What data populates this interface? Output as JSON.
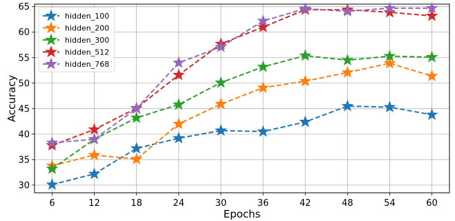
{
  "chart_data": {
    "type": "line",
    "title": "",
    "xlabel": "Epochs",
    "ylabel": "Accuracy",
    "x": [
      6,
      12,
      18,
      24,
      30,
      36,
      42,
      48,
      54,
      60
    ],
    "xlim": [
      3.5,
      62.5
    ],
    "ylim": [
      28.5,
      65.5
    ],
    "yticks": [
      30,
      35,
      40,
      45,
      50,
      55,
      60,
      65
    ],
    "grid": true,
    "legend_position": "top-left",
    "marker": "star",
    "line_style": "dashed",
    "series": [
      {
        "name": "hidden_100",
        "color": "#1f77b4",
        "values": [
          30.1,
          32.2,
          37.2,
          39.2,
          40.7,
          40.5,
          42.4,
          45.5,
          45.3,
          43.8
        ]
      },
      {
        "name": "hidden_200",
        "color": "#ff7f0e",
        "values": [
          33.8,
          35.9,
          35.1,
          42.0,
          45.9,
          49.1,
          50.4,
          52.1,
          53.9,
          51.4
        ]
      },
      {
        "name": "hidden_300",
        "color": "#2ca02c",
        "values": [
          33.2,
          39.0,
          43.2,
          45.8,
          50.1,
          53.2,
          55.4,
          54.5,
          55.3,
          55.1
        ]
      },
      {
        "name": "hidden_512",
        "color": "#d62728",
        "values": [
          37.8,
          40.9,
          45.1,
          51.6,
          57.7,
          61.0,
          64.4,
          64.4,
          63.9,
          63.2
        ]
      },
      {
        "name": "hidden_768",
        "color": "#9467bd",
        "values": [
          38.3,
          39.0,
          45.0,
          54.0,
          57.1,
          62.2,
          64.6,
          64.1,
          64.7,
          64.7
        ]
      }
    ]
  }
}
